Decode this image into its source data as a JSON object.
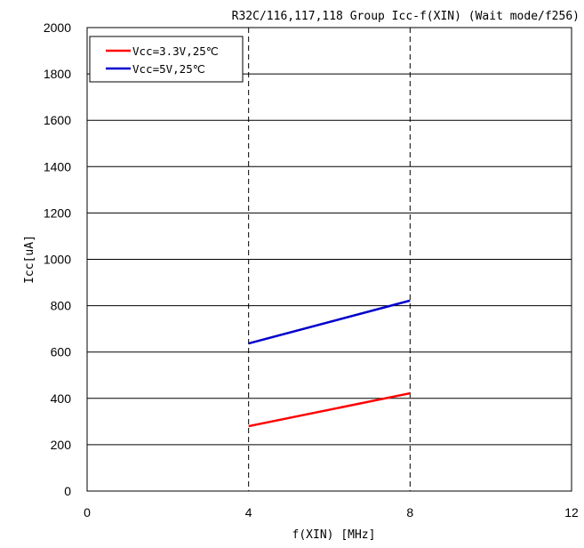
{
  "chart_data": {
    "type": "line",
    "title": "R32C/116,117,118 Group Icc-f(XIN) (Wait mode/f256)",
    "xlabel": "f(XIN) [MHz]",
    "ylabel": "Icc[uA]",
    "xlim": [
      0,
      12
    ],
    "ylim": [
      0,
      2000
    ],
    "xticks": [
      0,
      4,
      8,
      12
    ],
    "yticks": [
      0,
      200,
      400,
      600,
      800,
      1000,
      1200,
      1400,
      1600,
      1800,
      2000
    ],
    "grid": true,
    "legend_position": "top-left",
    "series": [
      {
        "name": "Vcc=3.3V,25℃",
        "color": "#ff0000",
        "x": [
          4,
          8
        ],
        "y": [
          280,
          422
        ]
      },
      {
        "name": "Vcc=5V,25℃",
        "color": "#0000cc",
        "x": [
          4,
          8
        ],
        "y": [
          637,
          822
        ]
      }
    ]
  }
}
